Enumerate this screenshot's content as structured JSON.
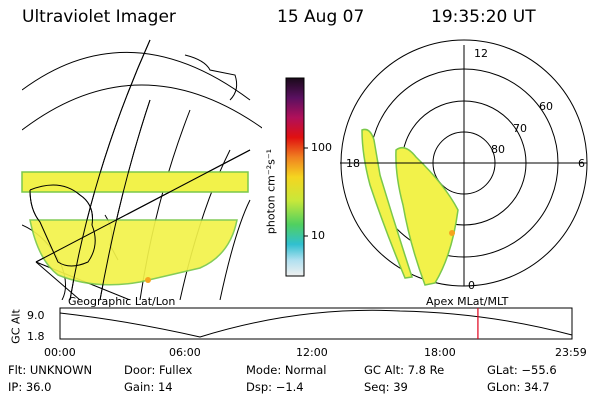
{
  "header": {
    "instrument": "Ultraviolet Imager",
    "date": "15 Aug 07",
    "time": "19:35:20 UT"
  },
  "colorbar": {
    "unit_label": "photon cm⁻²s⁻¹",
    "ticks": [
      "100",
      "10"
    ]
  },
  "polar_plot": {
    "title": "Apex MLat/MLT",
    "mlt_labels": [
      "12",
      "18",
      "6",
      "0"
    ],
    "lat_labels": [
      "60",
      "70",
      "80"
    ]
  },
  "geo_plot": {
    "title": "Geographic Lat/Lon"
  },
  "altitude_strip": {
    "axis_label": "GC Alt",
    "y_ticks": [
      "9.0",
      "1.8"
    ],
    "x_ticks": [
      "00:00",
      "06:00",
      "12:00",
      "18:00",
      "23:59"
    ],
    "current_marker_hours": 19.59
  },
  "info": {
    "row1": [
      {
        "label": "Flt:",
        "value": "UNKNOWN"
      },
      {
        "label": "Door:",
        "value": "Fullex"
      },
      {
        "label": "Mode:",
        "value": "Normal"
      },
      {
        "label": "GC Alt:",
        "value": "7.8 Re"
      },
      {
        "label": "GLat:",
        "value": "−55.6"
      }
    ],
    "row2": [
      {
        "label": "IP:",
        "value": "36.0"
      },
      {
        "label": "Gain:",
        "value": "14"
      },
      {
        "label": "Dsp:",
        "value": "−1.4"
      },
      {
        "label": "Seq:",
        "value": "39"
      },
      {
        "label": "GLon:",
        "value": "34.7"
      }
    ]
  },
  "colors": {
    "intensity_fill": "#f2f24a",
    "intensity_edge": "#7ac84a",
    "marker": "#e0001b"
  }
}
